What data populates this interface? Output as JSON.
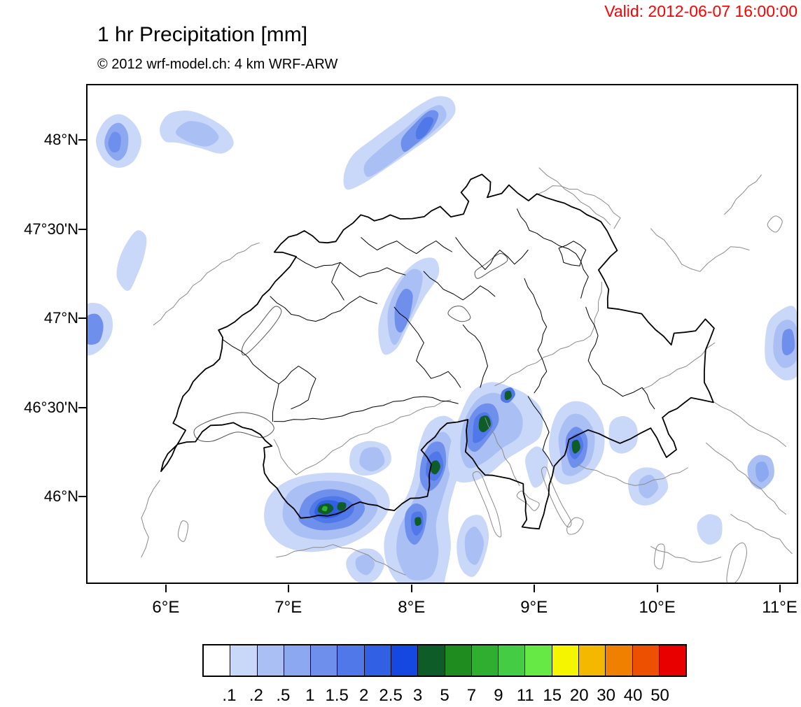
{
  "header": {
    "valid_text": "Valid: 2012-06-07 16:00:00",
    "valid_color": "#ff0000",
    "title": "1 hr Precipitation [mm]",
    "subtitle": "© 2012 wrf-model.ch: 4 km WRF-ARW"
  },
  "map": {
    "extent": {
      "lon_min": 5.35,
      "lon_max": 11.15,
      "lat_min": 45.51,
      "lat_max": 48.31
    },
    "lat_ticks": [
      {
        "label": "48°N",
        "pos": 0.112
      },
      {
        "label": "47°30'N",
        "pos": 0.291
      },
      {
        "label": "47°N",
        "pos": 0.469
      },
      {
        "label": "46°30'N",
        "pos": 0.647
      },
      {
        "label": "46°N",
        "pos": 0.825
      }
    ],
    "lon_ticks": [
      {
        "label": "6°E",
        "pos": 0.112
      },
      {
        "label": "7°E",
        "pos": 0.284
      },
      {
        "label": "8°E",
        "pos": 0.457
      },
      {
        "label": "9°E",
        "pos": 0.629
      },
      {
        "label": "10°E",
        "pos": 0.802
      },
      {
        "label": "11°E",
        "pos": 0.974
      }
    ]
  },
  "colorbar": {
    "unit": "mm",
    "labels": [
      ".1",
      ".2",
      ".5",
      "1",
      "1.5",
      "2",
      "2.5",
      "3",
      "5",
      "7",
      "9",
      "11",
      "15",
      "20",
      "30",
      "40",
      "50"
    ],
    "colors": [
      "#ffffff",
      "#c9d7f8",
      "#aabff4",
      "#8ca8f0",
      "#6e90ec",
      "#5078e8",
      "#3260e4",
      "#1448e0",
      "#0e5c28",
      "#1e8c1e",
      "#2fae2f",
      "#44cc44",
      "#66e845",
      "#f5f500",
      "#f5b800",
      "#f08000",
      "#ec5000",
      "#e80000"
    ]
  },
  "chart_data": {
    "type": "heatmap",
    "quantity": "1 hr Precipitation",
    "unit": "mm",
    "valid": "2012-06-07 16:00:00",
    "model": "4 km WRF-ARW",
    "scale_breaks_mm": [
      0.1,
      0.2,
      0.5,
      1,
      1.5,
      2,
      2.5,
      3,
      5,
      7,
      9,
      11,
      15,
      20,
      30,
      40,
      50
    ],
    "features": [
      {
        "lon": 5.6,
        "lat": 48.0,
        "approx_max_mm": "1-1.5"
      },
      {
        "lon": 6.25,
        "lat": 48.05,
        "approx_max_mm": "0.2-0.5"
      },
      {
        "lon": 8.05,
        "lat": 48.05,
        "approx_max_mm": "1.5-2"
      },
      {
        "lon": 5.72,
        "lat": 47.3,
        "approx_max_mm": "0.1-0.2"
      },
      {
        "lon": 5.42,
        "lat": 46.95,
        "approx_max_mm": "1-1.5"
      },
      {
        "lon": 7.95,
        "lat": 47.05,
        "approx_max_mm": "1-1.5"
      },
      {
        "lon": 11.05,
        "lat": 46.85,
        "approx_max_mm": "1-1.5"
      },
      {
        "lon": 7.3,
        "lat": 45.93,
        "approx_max_mm": "3-7"
      },
      {
        "lon": 8.2,
        "lat": 46.17,
        "approx_max_mm": "3-5"
      },
      {
        "lon": 8.06,
        "lat": 45.86,
        "approx_max_mm": "3-5"
      },
      {
        "lon": 8.58,
        "lat": 46.4,
        "approx_max_mm": "3-5"
      },
      {
        "lon": 8.78,
        "lat": 46.57,
        "approx_max_mm": "3-5"
      },
      {
        "lon": 9.34,
        "lat": 46.28,
        "approx_max_mm": "3-5"
      }
    ]
  }
}
